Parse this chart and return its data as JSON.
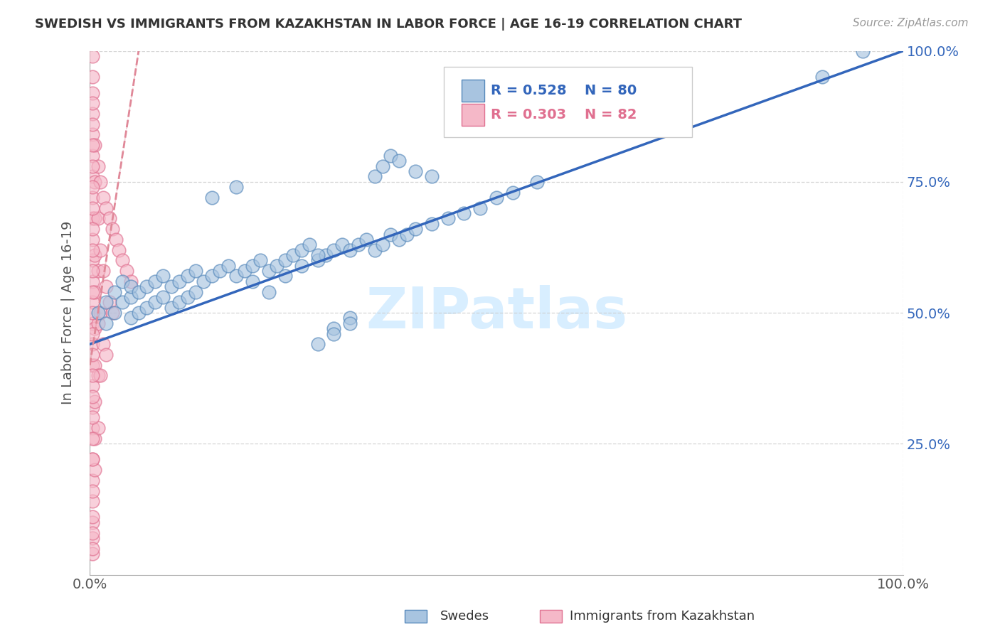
{
  "title": "SWEDISH VS IMMIGRANTS FROM KAZAKHSTAN IN LABOR FORCE | AGE 16-19 CORRELATION CHART",
  "source": "Source: ZipAtlas.com",
  "ylabel": "In Labor Force | Age 16-19",
  "xlim": [
    0,
    1.0
  ],
  "ylim": [
    0,
    1.0
  ],
  "ytick_labels": [
    "25.0%",
    "50.0%",
    "75.0%",
    "100.0%"
  ],
  "ytick_positions": [
    0.25,
    0.5,
    0.75,
    1.0
  ],
  "legend_label1": "Swedes",
  "legend_label2": "Immigrants from Kazakhstan",
  "R1": 0.528,
  "N1": 80,
  "R2": 0.303,
  "N2": 82,
  "blue_color": "#A8C4E0",
  "blue_edge_color": "#5588BB",
  "pink_color": "#F5B8C8",
  "pink_edge_color": "#E07090",
  "blue_line_color": "#3366BB",
  "pink_line_color": "#E08898",
  "watermark": "ZIPatlas",
  "watermark_color": "#D8EEFF",
  "blue_line_x0": 0.0,
  "blue_line_y0": 0.44,
  "blue_line_x1": 1.0,
  "blue_line_y1": 1.0,
  "pink_line_x0": 0.0,
  "pink_line_y0": 0.4,
  "pink_line_x1": 0.06,
  "pink_line_y1": 1.0,
  "blue_dots_x": [
    0.01,
    0.02,
    0.02,
    0.03,
    0.03,
    0.04,
    0.04,
    0.05,
    0.05,
    0.05,
    0.06,
    0.06,
    0.07,
    0.07,
    0.08,
    0.08,
    0.09,
    0.09,
    0.1,
    0.1,
    0.11,
    0.11,
    0.12,
    0.12,
    0.13,
    0.13,
    0.14,
    0.15,
    0.16,
    0.17,
    0.18,
    0.19,
    0.2,
    0.21,
    0.22,
    0.23,
    0.24,
    0.25,
    0.26,
    0.27,
    0.28,
    0.29,
    0.3,
    0.31,
    0.32,
    0.33,
    0.34,
    0.35,
    0.36,
    0.37,
    0.38,
    0.39,
    0.4,
    0.42,
    0.44,
    0.46,
    0.48,
    0.5,
    0.52,
    0.55,
    0.35,
    0.36,
    0.37,
    0.38,
    0.4,
    0.42,
    0.9,
    0.95,
    0.3,
    0.32,
    0.28,
    0.3,
    0.32,
    0.2,
    0.22,
    0.24,
    0.26,
    0.28,
    0.15,
    0.18
  ],
  "blue_dots_y": [
    0.5,
    0.52,
    0.48,
    0.54,
    0.5,
    0.56,
    0.52,
    0.53,
    0.49,
    0.55,
    0.54,
    0.5,
    0.55,
    0.51,
    0.56,
    0.52,
    0.57,
    0.53,
    0.55,
    0.51,
    0.56,
    0.52,
    0.57,
    0.53,
    0.58,
    0.54,
    0.56,
    0.57,
    0.58,
    0.59,
    0.57,
    0.58,
    0.59,
    0.6,
    0.58,
    0.59,
    0.6,
    0.61,
    0.62,
    0.63,
    0.6,
    0.61,
    0.62,
    0.63,
    0.62,
    0.63,
    0.64,
    0.62,
    0.63,
    0.65,
    0.64,
    0.65,
    0.66,
    0.67,
    0.68,
    0.69,
    0.7,
    0.72,
    0.73,
    0.75,
    0.76,
    0.78,
    0.8,
    0.79,
    0.77,
    0.76,
    0.95,
    1.0,
    0.47,
    0.49,
    0.44,
    0.46,
    0.48,
    0.56,
    0.54,
    0.57,
    0.59,
    0.61,
    0.72,
    0.74
  ],
  "pink_dots_x": [
    0.003,
    0.003,
    0.003,
    0.003,
    0.003,
    0.003,
    0.003,
    0.003,
    0.003,
    0.003,
    0.003,
    0.003,
    0.003,
    0.003,
    0.003,
    0.003,
    0.003,
    0.003,
    0.003,
    0.003,
    0.003,
    0.003,
    0.003,
    0.003,
    0.003,
    0.006,
    0.006,
    0.006,
    0.006,
    0.006,
    0.006,
    0.006,
    0.006,
    0.006,
    0.006,
    0.01,
    0.01,
    0.01,
    0.01,
    0.01,
    0.01,
    0.013,
    0.013,
    0.013,
    0.013,
    0.016,
    0.016,
    0.016,
    0.02,
    0.02,
    0.02,
    0.024,
    0.024,
    0.028,
    0.028,
    0.032,
    0.036,
    0.04,
    0.045,
    0.05,
    0.003,
    0.003,
    0.003,
    0.003,
    0.003,
    0.003,
    0.003,
    0.003,
    0.003,
    0.003,
    0.003,
    0.003,
    0.003,
    0.003,
    0.003,
    0.003,
    0.003,
    0.003,
    0.003,
    0.003,
    0.003,
    0.003
  ],
  "pink_dots_y": [
    0.99,
    0.95,
    0.92,
    0.88,
    0.84,
    0.8,
    0.76,
    0.72,
    0.68,
    0.64,
    0.6,
    0.56,
    0.52,
    0.48,
    0.44,
    0.4,
    0.36,
    0.32,
    0.28,
    0.22,
    0.18,
    0.14,
    0.1,
    0.07,
    0.04,
    0.82,
    0.75,
    0.68,
    0.61,
    0.54,
    0.47,
    0.4,
    0.33,
    0.26,
    0.2,
    0.78,
    0.68,
    0.58,
    0.48,
    0.38,
    0.28,
    0.75,
    0.62,
    0.5,
    0.38,
    0.72,
    0.58,
    0.44,
    0.7,
    0.55,
    0.42,
    0.68,
    0.52,
    0.66,
    0.5,
    0.64,
    0.62,
    0.6,
    0.58,
    0.56,
    0.9,
    0.86,
    0.82,
    0.78,
    0.74,
    0.7,
    0.66,
    0.62,
    0.58,
    0.54,
    0.5,
    0.46,
    0.42,
    0.38,
    0.34,
    0.3,
    0.26,
    0.22,
    0.16,
    0.11,
    0.08,
    0.05
  ]
}
